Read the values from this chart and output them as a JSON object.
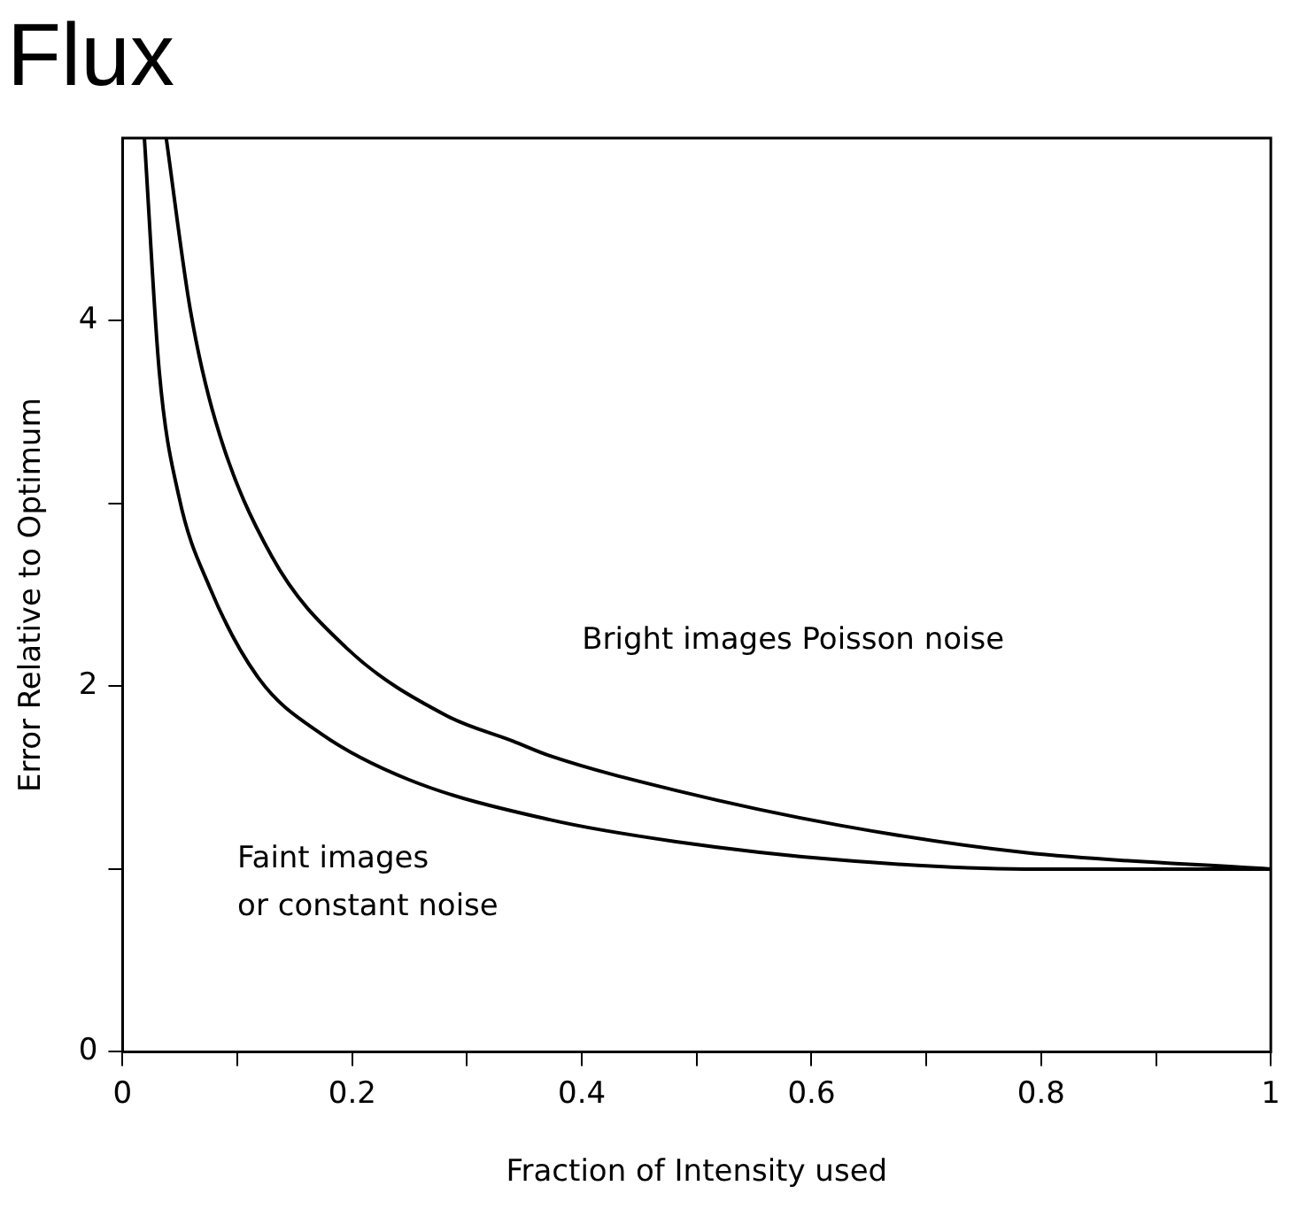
{
  "chart_data": {
    "type": "line",
    "title": "Flux",
    "xlabel": "Fraction of Intensity used",
    "ylabel": "Error Relative to Optimum",
    "xlim": [
      0,
      1
    ],
    "ylim": [
      0,
      5
    ],
    "xticks": [
      0,
      {
        "value": 0.1,
        "label": null
      },
      0.2,
      {
        "value": 0.3,
        "label": null
      },
      0.4,
      {
        "value": 0.5,
        "label": null
      },
      0.6,
      {
        "value": 0.7,
        "label": null
      },
      0.8,
      {
        "value": 0.9,
        "label": null
      },
      1
    ],
    "yticks": [
      0,
      {
        "value": 1,
        "label": null
      },
      2,
      {
        "value": 3,
        "label": null
      },
      4
    ],
    "grid": false,
    "legend": false,
    "marker": "none",
    "line_style": "solid",
    "series": [
      {
        "color": "#000000",
        "x": [
          0.038,
          0.059,
          0.081,
          0.13,
          0.195,
          0.282,
          0.34,
          0.372,
          0.482,
          0.624,
          0.786,
          1
        ],
        "values": [
          5,
          4.06,
          3.45,
          2.71,
          2.21,
          1.84,
          1.7,
          1.62,
          1.43,
          1.24,
          1.09,
          1
        ]
      },
      {
        "color": "#000000",
        "x": [
          0.019,
          0.032,
          0.049,
          0.076,
          0.119,
          0.173,
          0.249,
          0.372,
          0.482,
          0.624,
          0.786,
          1
        ],
        "values": [
          5,
          3.72,
          3.04,
          2.54,
          2.04,
          1.74,
          1.49,
          1.27,
          1.15,
          1.05,
          1,
          1
        ]
      }
    ],
    "annotations": [
      "Bright images Poisson noise",
      "Faint images\nor constant noise"
    ]
  }
}
